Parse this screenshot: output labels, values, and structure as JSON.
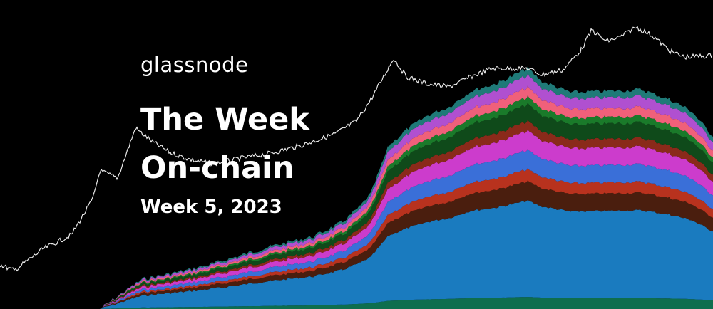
{
  "header": {
    "brand": "glassnode",
    "title_line1": "The Week",
    "title_line2": "On-chain",
    "edition": "Week 5, 2023"
  }
}
